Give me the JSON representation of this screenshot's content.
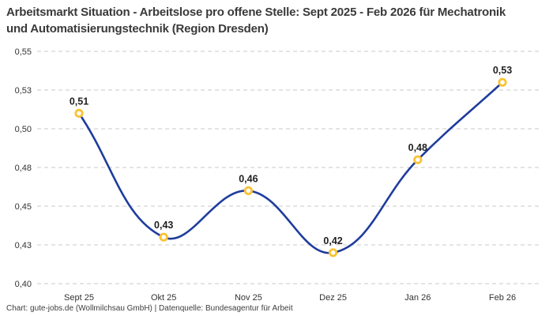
{
  "title": "Arbeitsmarkt Situation - Arbeitslose pro offene Stelle: Sept 2025 - Feb 2026 für Mechatronik und Automatisierungstechnik (Region Dresden)",
  "footer": "Chart: gute-jobs.de (Wollmilchsau GmbH) | Datenquelle: Bundesagentur für Arbeit",
  "colors": {
    "background": "#ffffff",
    "line": "#1f3d9c",
    "marker_stroke": "#f9c233",
    "marker_fill": "#ffffff",
    "grid": "#c9c9c9",
    "title_text": "#3a3a3a",
    "axis_text": "#333333",
    "point_label_text": "#1f1f1f"
  },
  "chart_data": {
    "type": "line",
    "title": "Arbeitsmarkt Situation - Arbeitslose pro offene Stelle: Sept 2025 - Feb 2026 für Mechatronik und Automatisierungstechnik (Region Dresden)",
    "categories": [
      "Sept 25",
      "Okt 25",
      "Nov 25",
      "Dez 25",
      "Jan 26",
      "Feb 26"
    ],
    "values": [
      0.51,
      0.43,
      0.46,
      0.42,
      0.48,
      0.53
    ],
    "point_labels": [
      "0,51",
      "0,43",
      "0,46",
      "0,42",
      "0,48",
      "0,53"
    ],
    "y_tick_labels": [
      "0,55",
      "0,53",
      "0,50",
      "0,48",
      "0,45",
      "0,43",
      "0,40"
    ],
    "ylim": [
      0.4,
      0.55
    ],
    "xlabel": "",
    "ylabel": "",
    "grid": "horizontal-dashed",
    "legend": "none",
    "line_style": "smooth-spline",
    "marker": "open-circle"
  }
}
